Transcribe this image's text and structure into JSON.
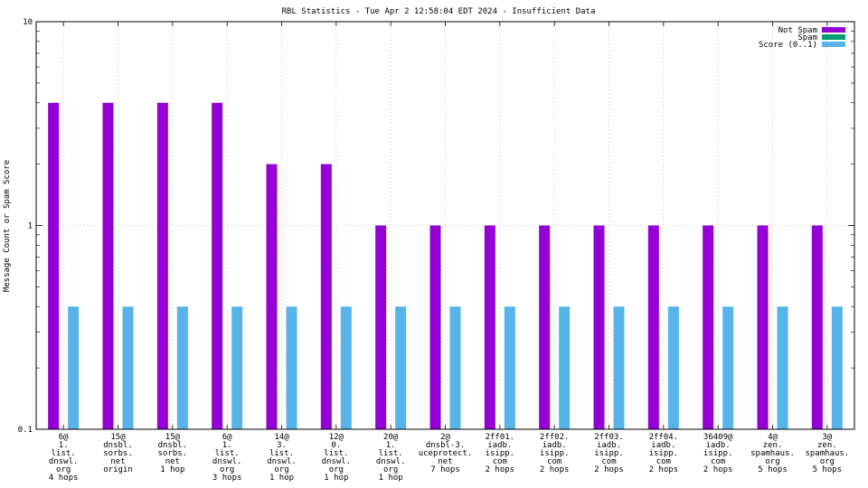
{
  "chart_data": {
    "type": "bar",
    "title": "RBL Statistics - Tue Apr  2 12:58:04 EDT 2024 - Insufficient Data",
    "ylabel": "Message Count or Spam Score",
    "xlabel": "",
    "yscale": "log",
    "ylim": [
      0.1,
      10
    ],
    "yticks": [
      "0.1",
      "1",
      "10"
    ],
    "grid": true,
    "legend_position": "top-right",
    "categories": [
      [
        "6@",
        "1.",
        "list.",
        "dnswl.",
        "org",
        "4 hops"
      ],
      [
        "15@",
        "dnsbl.",
        "sorbs.",
        "net",
        "origin"
      ],
      [
        "15@",
        "dnsbl.",
        "sorbs.",
        "net",
        "1 hop"
      ],
      [
        "6@",
        "1.",
        "list.",
        "dnswl.",
        "org",
        "3 hops"
      ],
      [
        "14@",
        "3.",
        "list.",
        "dnswl.",
        "org",
        "1 hop"
      ],
      [
        "12@",
        "0.",
        "list.",
        "dnswl.",
        "org",
        "1 hop"
      ],
      [
        "20@",
        "1.",
        "list.",
        "dnswl.",
        "org",
        "1 hop"
      ],
      [
        "2@",
        "dnsbl-3.",
        "uceprotect.",
        "net",
        "7 hops"
      ],
      [
        "2ff01.",
        "iadb.",
        "isipp.",
        "com",
        "2 hops"
      ],
      [
        "2ff02.",
        "iadb.",
        "isipp.",
        "com",
        "2 hops"
      ],
      [
        "2ff03.",
        "iadb.",
        "isipp.",
        "com",
        "2 hops"
      ],
      [
        "2ff04.",
        "iadb.",
        "isipp.",
        "com",
        "2 hops"
      ],
      [
        "36409@",
        "iadb.",
        "isipp.",
        "com",
        "2 hops"
      ],
      [
        "4@",
        "zen.",
        "spamhaus.",
        "org",
        "5 hops"
      ],
      [
        "3@",
        "zen.",
        "spamhaus.",
        "org",
        "5 hops"
      ]
    ],
    "series": [
      {
        "name": "Not Spam",
        "color": "#9400d3",
        "values": [
          4,
          4,
          4,
          4,
          2,
          2,
          1,
          1,
          1,
          1,
          1,
          1,
          1,
          1,
          1
        ]
      },
      {
        "name": "Spam",
        "color": "#009e73",
        "values": [
          0,
          0,
          0,
          0,
          0,
          0,
          0,
          0,
          0,
          0,
          0,
          0,
          0,
          0,
          0
        ]
      },
      {
        "name": "Score (0..1)",
        "color": "#56b4e9",
        "values": [
          0.4,
          0.4,
          0.4,
          0.4,
          0.4,
          0.4,
          0.4,
          0.4,
          0.4,
          0.4,
          0.4,
          0.4,
          0.4,
          0.4,
          0.4
        ]
      }
    ]
  }
}
